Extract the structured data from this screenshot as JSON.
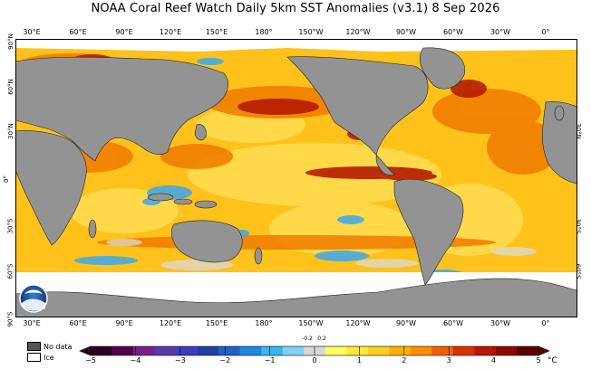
{
  "title": "NOAA Coral Reef Watch Daily 5km SST Anomalies  (v3.1)   8 Sep 2026",
  "longitude_labels": [
    "30°E",
    "60°E",
    "90°E",
    "120°E",
    "150°E",
    "180°",
    "150°W",
    "120°W",
    "90°W",
    "60°W",
    "30°W",
    "0°"
  ],
  "latitude_labels_left": [
    "90°N",
    "60°N",
    "30°N",
    "0°",
    "30°S",
    "60°S",
    "90°S"
  ],
  "latitude_labels_right": [
    "30°N",
    "0°",
    "30°S",
    "60°S"
  ],
  "legend": {
    "no_data_label": "No data",
    "no_data_color": "#555555",
    "ice_label": "Ice",
    "ice_color": "#ffffff"
  },
  "colorbar": {
    "ticks": [
      "−5",
      "−4",
      "−3",
      "−2",
      "−1",
      "0",
      "1",
      "2",
      "3",
      "4",
      "5"
    ],
    "small_labels": [
      "-0.2",
      "0.2"
    ],
    "unit": "°C",
    "colors": [
      "#2a001f",
      "#55004d",
      "#7a1f8a",
      "#5a3aa8",
      "#3b3fbf",
      "#1e3f9e",
      "#2060c8",
      "#1f88e0",
      "#3ab6f0",
      "#7fd2f5",
      "#d8d8d8",
      "#ffff60",
      "#ffe838",
      "#ffd020",
      "#ffb000",
      "#ff8c00",
      "#f06000",
      "#d83000",
      "#b81800",
      "#8a0a00",
      "#5a0000"
    ]
  },
  "map_colors": {
    "ocean_base": "#ffc21a",
    "land": "#939393",
    "ice": "#ffffff",
    "hot": "#d23a00",
    "very_hot": "#8c1200",
    "warm": "#ffd84a",
    "cool": "#42a8ee",
    "neutral": "#dadada"
  },
  "logo": "noaa-logo"
}
